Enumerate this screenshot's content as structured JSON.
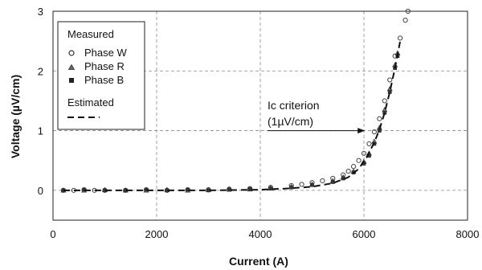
{
  "chart_data": {
    "type": "scatter",
    "xlabel": "Current (A)",
    "ylabel": "Voltage (µV/cm)",
    "xlim": [
      0,
      8000
    ],
    "ylim": [
      -0.5,
      3
    ],
    "x_ticks": [
      "0",
      "2000",
      "4000",
      "6000",
      "8000"
    ],
    "y_ticks": [
      "0",
      "1",
      "2",
      "3"
    ],
    "grid": true,
    "legend": {
      "placement": "top-left",
      "group_measured": "Measured",
      "group_estimated": "Estimated",
      "entries": [
        {
          "label": "Phase W",
          "marker": "circle"
        },
        {
          "label": "Phase R",
          "marker": "triangle"
        },
        {
          "label": "Phase B",
          "marker": "square"
        }
      ]
    },
    "annotation": {
      "line1": "Ic criterion",
      "line2": "(1µV/cm)",
      "points_to": {
        "x": 6050,
        "y": 1.0
      }
    },
    "series": [
      {
        "name": "Phase W",
        "marker": "circle",
        "x": [
          200,
          400,
          600,
          800,
          1000,
          1400,
          1800,
          2200,
          2600,
          3000,
          3400,
          3800,
          4200,
          4600,
          4800,
          5000,
          5200,
          5400,
          5600,
          5700,
          5800,
          5900,
          6000,
          6100,
          6200,
          6300,
          6400,
          6500,
          6600,
          6700,
          6800,
          6850
        ],
        "y": [
          0.0,
          0.0,
          0.01,
          0.0,
          0.0,
          0.0,
          0.01,
          0.0,
          0.01,
          0.01,
          0.02,
          0.03,
          0.05,
          0.08,
          0.1,
          0.13,
          0.16,
          0.2,
          0.26,
          0.32,
          0.4,
          0.5,
          0.62,
          0.78,
          0.98,
          1.2,
          1.5,
          1.85,
          2.25,
          2.55,
          2.85,
          3.0
        ]
      },
      {
        "name": "Phase R",
        "marker": "triangle",
        "x": [
          200,
          600,
          1000,
          1400,
          1800,
          2200,
          2600,
          3000,
          3400,
          3800,
          4200,
          4600,
          5000,
          5400,
          5600,
          5800,
          6000,
          6100,
          6200,
          6300,
          6400,
          6500,
          6600,
          6650
        ],
        "y": [
          0.0,
          0.0,
          0.01,
          0.0,
          0.0,
          0.01,
          0.0,
          0.01,
          0.02,
          0.02,
          0.04,
          0.06,
          0.1,
          0.16,
          0.22,
          0.32,
          0.48,
          0.62,
          0.82,
          1.05,
          1.35,
          1.7,
          2.1,
          2.3
        ]
      },
      {
        "name": "Phase B",
        "marker": "square",
        "x": [
          200,
          600,
          1000,
          1400,
          1800,
          2200,
          2600,
          3000,
          3400,
          3800,
          4200,
          4600,
          5000,
          5400,
          5600,
          5800,
          6000,
          6100,
          6200,
          6300,
          6400,
          6500,
          6600,
          6650
        ],
        "y": [
          0.0,
          0.01,
          0.0,
          0.0,
          0.01,
          0.0,
          0.01,
          0.0,
          0.01,
          0.02,
          0.03,
          0.05,
          0.09,
          0.14,
          0.2,
          0.3,
          0.45,
          0.58,
          0.78,
          1.0,
          1.3,
          1.65,
          2.05,
          2.25
        ]
      },
      {
        "name": "Estimated",
        "style": "dashed",
        "x": [
          200,
          1000,
          2000,
          3000,
          4000,
          4500,
          5000,
          5400,
          5700,
          5900,
          6050,
          6200,
          6300,
          6400,
          6500,
          6600,
          6700
        ],
        "y": [
          0.0,
          0.0,
          0.0,
          0.0,
          0.01,
          0.03,
          0.06,
          0.12,
          0.22,
          0.36,
          0.55,
          0.8,
          1.02,
          1.3,
          1.65,
          2.05,
          2.5
        ]
      }
    ]
  }
}
